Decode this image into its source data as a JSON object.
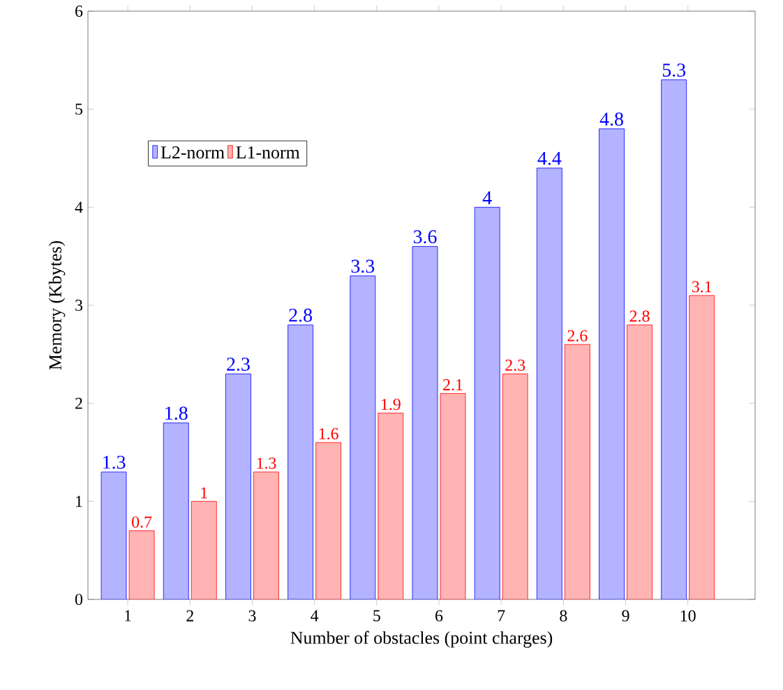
{
  "chart_data": {
    "type": "bar",
    "xlabel": "Number of obstacles (point charges)",
    "ylabel": "Memory (Kbytes)",
    "categories": [
      "1",
      "2",
      "3",
      "4",
      "5",
      "6",
      "7",
      "8",
      "9",
      "10"
    ],
    "series": [
      {
        "name": "L2-norm",
        "color": "#b3b3ff",
        "values": [
          1.3,
          1.8,
          2.3,
          2.8,
          3.3,
          3.6,
          4,
          4.4,
          4.8,
          5.3
        ]
      },
      {
        "name": "L1-norm",
        "color": "#ffb3b3",
        "values": [
          0.7,
          1,
          1.3,
          1.6,
          1.9,
          2.1,
          2.3,
          2.6,
          2.8,
          3.1
        ]
      }
    ],
    "ylim": [
      0,
      6
    ],
    "yticks": [
      0,
      1,
      2,
      3,
      4,
      5,
      6
    ],
    "data_labels": true,
    "legend": "top left"
  }
}
